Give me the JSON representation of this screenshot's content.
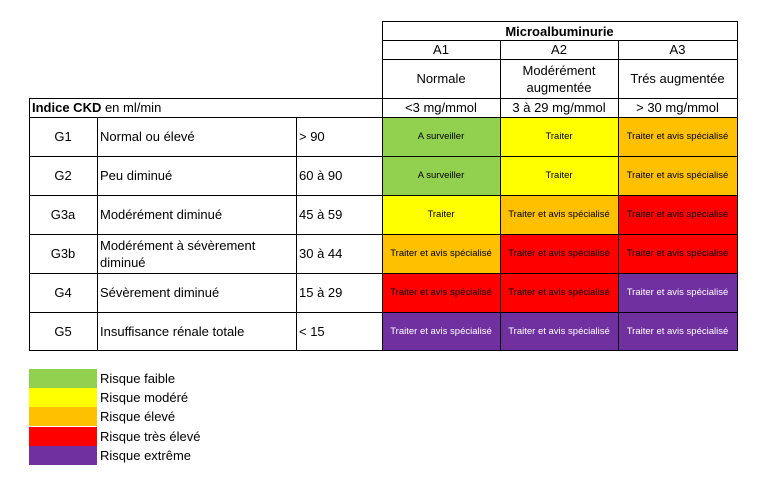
{
  "header": {
    "title": "Microalbuminurie",
    "columns": [
      {
        "code": "A1",
        "name": "Normale",
        "value": "<3 mg/mmol"
      },
      {
        "code": "A2",
        "name": "Modérément augmentée",
        "value": "3 à 29 mg/mmol"
      },
      {
        "code": "A3",
        "name": "Trés augmentée",
        "value": "> 30 mg/mmol"
      }
    ],
    "row_label_bold": "Indice CKD",
    "row_label_rest": " en ml/min"
  },
  "rows": [
    {
      "grade": "G1",
      "label": "Normal ou élevé",
      "range": "> 90",
      "cells": [
        "A surveiller",
        "Traiter",
        "Traiter et avis spécialisé"
      ]
    },
    {
      "grade": "G2",
      "label": "Peu diminué",
      "range": "60 à 90",
      "cells": [
        "A surveiller",
        "Traiter",
        "Traiter et avis spécialisé"
      ]
    },
    {
      "grade": "G3a",
      "label": "Modérément diminué",
      "range": "45 à 59",
      "cells": [
        "Traiter",
        "Traiter et avis spécialisé",
        "Traiter et avis spécialisé"
      ]
    },
    {
      "grade": "G3b",
      "label": "Modérément à sévèrement diminué",
      "range": "30 à 44",
      "cells": [
        "Traiter et avis spécialisé",
        "Traiter et avis spécialisé",
        "Traiter et avis spécialisé"
      ]
    },
    {
      "grade": "G4",
      "label": "Sévèrement diminué",
      "range": "15 à 29",
      "cells": [
        "Traiter et avis spécialisé",
        "Traiter et avis spécialisé",
        "Traiter et avis spécialisé"
      ]
    },
    {
      "grade": "G5",
      "label": "Insuffisance rénale totale",
      "range": "< 15",
      "cells": [
        "Traiter et avis spécialisé",
        "Traiter et avis spécialisé",
        "Traiter et avis spécialisé"
      ]
    }
  ],
  "legend": [
    {
      "label": "Risque faible",
      "color": "#92d050"
    },
    {
      "label": "Risque modéré",
      "color": "#ffff00"
    },
    {
      "label": "Risque élevé",
      "color": "#ffc000"
    },
    {
      "label": "Risque très élevé",
      "color": "#ff0000"
    },
    {
      "label": "Risque extrême",
      "color": "#7030a0"
    }
  ]
}
